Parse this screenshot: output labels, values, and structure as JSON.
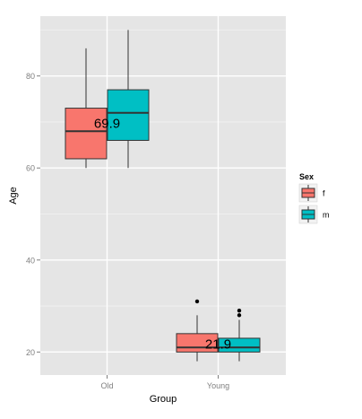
{
  "chart_data": {
    "type": "boxplot",
    "title": "",
    "xlabel": "Group",
    "ylabel": "Age",
    "categories": [
      "Old",
      "Young"
    ],
    "y_ticks": [
      20,
      40,
      60,
      80
    ],
    "ylim": [
      15,
      93
    ],
    "grid": true,
    "legend": {
      "title": "Sex",
      "placement": "right",
      "entries": [
        {
          "label": "f",
          "color": "#F8766D"
        },
        {
          "label": "m",
          "color": "#00BFC4"
        }
      ]
    },
    "series": [
      {
        "name": "f",
        "color": "#F8766D",
        "boxes": [
          {
            "category": "Old",
            "whisker_low": 60,
            "q1": 62,
            "median": 68,
            "q3": 73,
            "whisker_high": 86,
            "outliers": []
          },
          {
            "category": "Young",
            "whisker_low": 18,
            "q1": 20,
            "median": 21,
            "q3": 24,
            "whisker_high": 28,
            "outliers": [
              31
            ]
          }
        ]
      },
      {
        "name": "m",
        "color": "#00BFC4",
        "boxes": [
          {
            "category": "Old",
            "whisker_low": 60,
            "q1": 66,
            "median": 72,
            "q3": 77,
            "whisker_high": 90,
            "outliers": []
          },
          {
            "category": "Young",
            "whisker_low": 18,
            "q1": 20,
            "median": 21,
            "q3": 23,
            "whisker_high": 27,
            "outliers": [
              28,
              29
            ]
          }
        ]
      }
    ],
    "annotations": [
      {
        "category": "Old",
        "y": 69.9,
        "text": "69.9"
      },
      {
        "category": "Young",
        "y": 21.9,
        "text": "21.9"
      }
    ],
    "colors": {
      "panel_bg": "#E5E5E5",
      "grid_major": "#FFFFFF",
      "grid_minor": "#F2F2F2",
      "tick_label": "#7F7F7F",
      "axis_title": "#000000",
      "box_outline": "#333333"
    }
  }
}
